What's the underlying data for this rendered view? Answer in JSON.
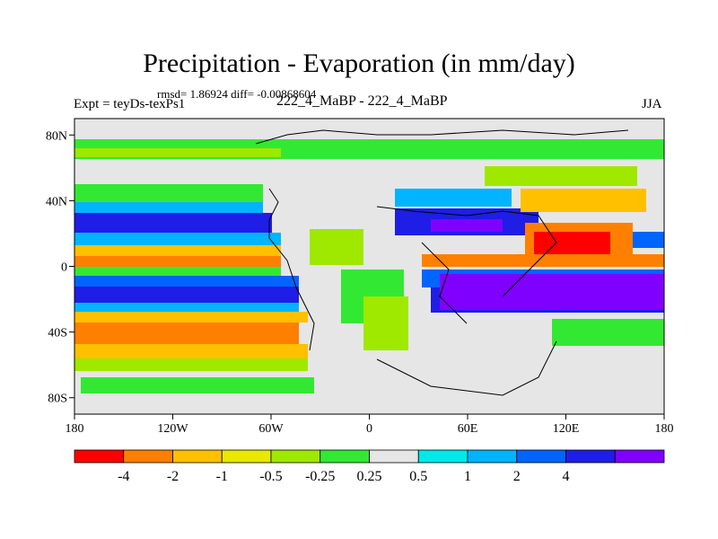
{
  "title": "Precipitation - Evaporation (in mm/day)",
  "stats": "rmsd= 1.86924 diff= -0.00868604",
  "experiment": "Expt = teyDs-texPs1",
  "case_name": "222_4_MaBP - 222_4_MaBP",
  "season": "JJA",
  "map": {
    "lon_range": [
      -180,
      180
    ],
    "lat_range": [
      -90,
      90
    ],
    "x_ticks": [
      {
        "lon": -180,
        "label": "180"
      },
      {
        "lon": -120,
        "label": "120W"
      },
      {
        "lon": -60,
        "label": "60W"
      },
      {
        "lon": 0,
        "label": "0"
      },
      {
        "lon": 60,
        "label": "60E"
      },
      {
        "lon": 120,
        "label": "120E"
      },
      {
        "lon": 180,
        "label": "180"
      }
    ],
    "y_ticks": [
      {
        "lat": 80,
        "label": "80N"
      },
      {
        "lat": 40,
        "label": "40N"
      },
      {
        "lat": 0,
        "label": "0"
      },
      {
        "lat": -40,
        "label": "40S"
      },
      {
        "lat": -80,
        "label": "80S"
      }
    ]
  },
  "colorbar": {
    "colors": [
      "#ff0000",
      "#ff8000",
      "#ffc000",
      "#e8e800",
      "#9fe800",
      "#33e833",
      "#e6e6e6",
      "#00e8e8",
      "#00b4ff",
      "#0064ff",
      "#1e1ee6",
      "#8000ff"
    ],
    "labels": [
      "-4",
      "-2",
      "-1",
      "-0.5",
      "-0.25",
      "0.25",
      "0.5",
      "1",
      "2",
      "4"
    ]
  },
  "colors": {
    "land_background": "#e6e6e6",
    "coast": "#000000"
  }
}
